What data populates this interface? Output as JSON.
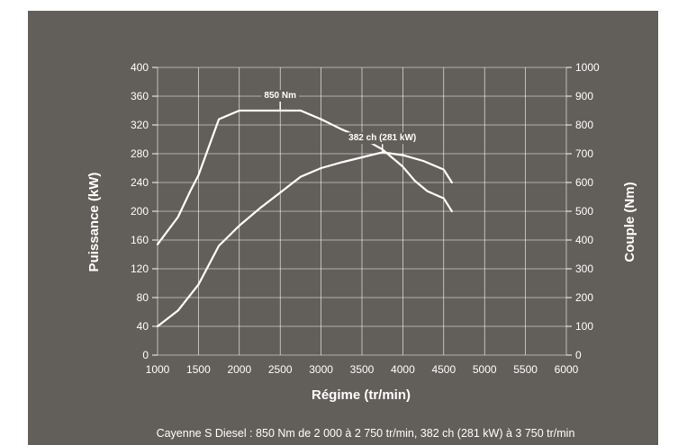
{
  "chart_data": {
    "type": "line",
    "colors": {
      "background": "#625e5a",
      "lines": "#ffffff",
      "grid": "#ffffff"
    },
    "grid": true,
    "xlabel": "Régime (tr/min)",
    "ylabel_left": "Puissance (kW)",
    "ylabel_right": "Couple (Nm)",
    "xlim": [
      1000,
      6000
    ],
    "ylim_left": [
      0,
      400
    ],
    "ylim_right": [
      0,
      1000
    ],
    "x_ticks": [
      1000,
      1500,
      2000,
      2500,
      3000,
      3500,
      4000,
      4500,
      5000,
      5500,
      6000
    ],
    "y_left_ticks": [
      0,
      40,
      80,
      120,
      160,
      200,
      240,
      280,
      320,
      360,
      400
    ],
    "y_right_ticks": [
      0,
      100,
      200,
      300,
      400,
      500,
      600,
      700,
      800,
      900,
      1000
    ],
    "series": [
      {
        "axis": "left",
        "x": [
          1000,
          1250,
          1500,
          1750,
          2000,
          2250,
          2500,
          2750,
          3000,
          3250,
          3500,
          3750,
          4000,
          4250,
          4500,
          4600
        ],
        "values": [
          40,
          62,
          98,
          152,
          180,
          204,
          226,
          248,
          260,
          268,
          275,
          282,
          278,
          270,
          258,
          240
        ]
      },
      {
        "axis": "right",
        "x": [
          1000,
          1250,
          1400,
          1500,
          1750,
          2000,
          2250,
          2500,
          2750,
          3000,
          3250,
          3500,
          3750,
          4000,
          4150,
          4300,
          4500,
          4600
        ],
        "values": [
          385,
          480,
          570,
          625,
          820,
          850,
          850,
          850,
          850,
          820,
          785,
          755,
          715,
          655,
          605,
          570,
          545,
          500
        ]
      }
    ],
    "annotations": [
      {
        "text": "850 Nm",
        "x": 2500,
        "axis": "right",
        "y": 850
      },
      {
        "text": "382 ch (281 kW)",
        "x": 3750,
        "axis": "left",
        "y": 281
      }
    ]
  },
  "caption": "Cayenne S Diesel : 850 Nm de 2 000 à 2 750 tr/min, 382 ch (281 kW) à 3 750 tr/min"
}
